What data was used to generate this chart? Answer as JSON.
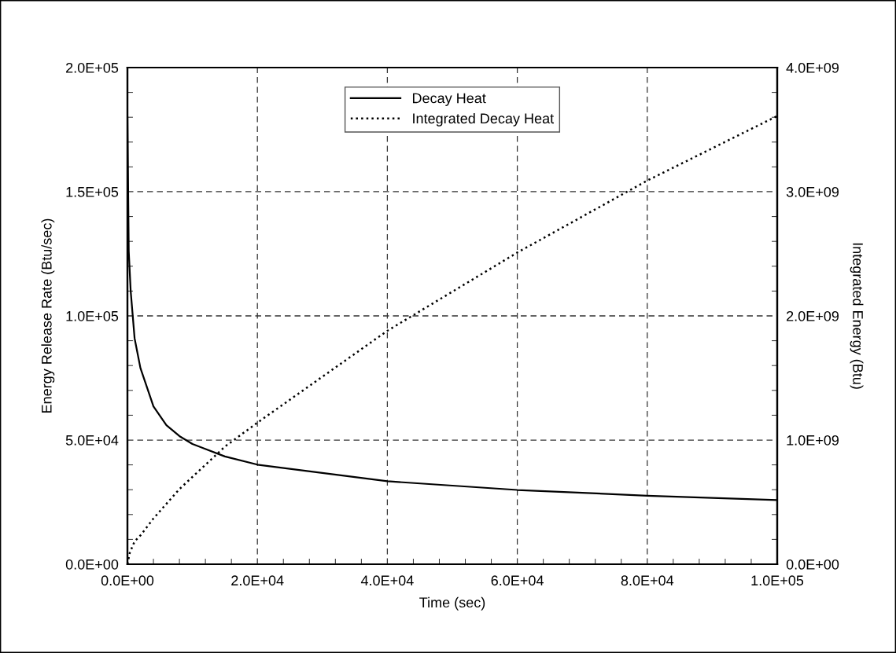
{
  "chart_data": {
    "type": "line",
    "xlabel": "Time (sec)",
    "ylabel": "Energy Release Rate (Btu/sec)",
    "y2label": "Integrated Energy (Btu)",
    "series": [
      {
        "name": "Decay Heat",
        "color": "#000000",
        "line_style": "solid",
        "x": [
          0,
          200,
          500,
          1100,
          2000,
          4000,
          6000,
          8000,
          10000,
          15000,
          20000,
          40000,
          60000,
          80000,
          100000
        ],
        "values": [
          180000,
          126000,
          110000,
          91000,
          79000,
          63600,
          56000,
          51600,
          48400,
          43400,
          40100,
          33400,
          29900,
          27600,
          25800
        ]
      },
      {
        "name": "Integrated Decay Heat",
        "color": "#000000",
        "line_style": "dotted",
        "axis": "y2",
        "x": [
          0,
          360,
          1100,
          2100,
          4000,
          8000,
          15000,
          20000,
          40000,
          60000,
          80000,
          100000
        ],
        "values": [
          0,
          92000000,
          184000000,
          237000000,
          368000000,
          605000000,
          947000000,
          1140000000,
          1880000000,
          2510000000,
          3090000000,
          3610000000
        ]
      }
    ],
    "xlim": [
      0,
      100000
    ],
    "xticks": [
      {
        "value": 0,
        "label": "0.0E+00"
      },
      {
        "value": 20000,
        "label": "2.0E+04"
      },
      {
        "value": 40000,
        "label": "4.0E+04"
      },
      {
        "value": 60000,
        "label": "6.0E+04"
      },
      {
        "value": 80000,
        "label": "8.0E+04"
      },
      {
        "value": 100000,
        "label": "1.0E+05"
      }
    ],
    "ylim": [
      0,
      200000
    ],
    "yticks": [
      {
        "value": 0,
        "label": "0.0E+00"
      },
      {
        "value": 50000,
        "label": "5.0E+04"
      },
      {
        "value": 100000,
        "label": "1.0E+05"
      },
      {
        "value": 150000,
        "label": "1.5E+05"
      },
      {
        "value": 200000,
        "label": "2.0E+05"
      }
    ],
    "y2lim": [
      0,
      4000000000
    ],
    "y2ticks": [
      {
        "value": 0,
        "label": "0.0E+00"
      },
      {
        "value": 1000000000,
        "label": "1.0E+09"
      },
      {
        "value": 2000000000,
        "label": "2.0E+09"
      },
      {
        "value": 3000000000,
        "label": "3.0E+09"
      },
      {
        "value": 4000000000,
        "label": "4.0E+09"
      }
    ],
    "grid": true,
    "legend": "top",
    "marker": "none"
  }
}
